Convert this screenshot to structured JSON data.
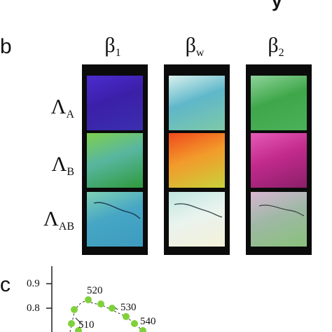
{
  "top_partial_text": "y",
  "panel_b": {
    "letter": "b",
    "columns": [
      {
        "base": "β",
        "sub": "1"
      },
      {
        "base": "β",
        "sub": "w"
      },
      {
        "base": "β",
        "sub": "2"
      }
    ],
    "rows": [
      {
        "base": "Λ",
        "sub": "A"
      },
      {
        "base": "Λ",
        "sub": "B"
      },
      {
        "base": "Λ",
        "sub": "AB"
      }
    ],
    "swatch_colors": {
      "A_1": [
        "#3b1fa8",
        "#4b2ccf",
        "#3a2fb0"
      ],
      "A_w": [
        "#5fb7c9",
        "#d9f1ef",
        "#7ec9a8"
      ],
      "A_2": [
        "#3fa74a",
        "#8fd39a",
        "#4bb15a"
      ],
      "B_1": [
        "#58b6a0",
        "#7ed04e",
        "#2e9a3c"
      ],
      "B_w": [
        "#f39a2b",
        "#ef4a1c",
        "#c8d23a"
      ],
      "B_2": [
        "#c22a8c",
        "#e55ab7",
        "#8a1f6a"
      ],
      "AB_1": [
        "#46a6c4",
        "#7fd0b5",
        "#3d9cc0"
      ],
      "AB_w": [
        "#e9f3ee",
        "#bfe6df",
        "#f4f1d9"
      ],
      "AB_2": [
        "#9fb8a6",
        "#d7b6d2",
        "#89c17a"
      ]
    }
  },
  "panel_c": {
    "letter": "c",
    "y_ticks": [
      "0.9",
      "0.8"
    ],
    "wavelength_labels": [
      "520",
      "530",
      "540",
      "510"
    ],
    "point_color": "#7fd13a"
  }
}
